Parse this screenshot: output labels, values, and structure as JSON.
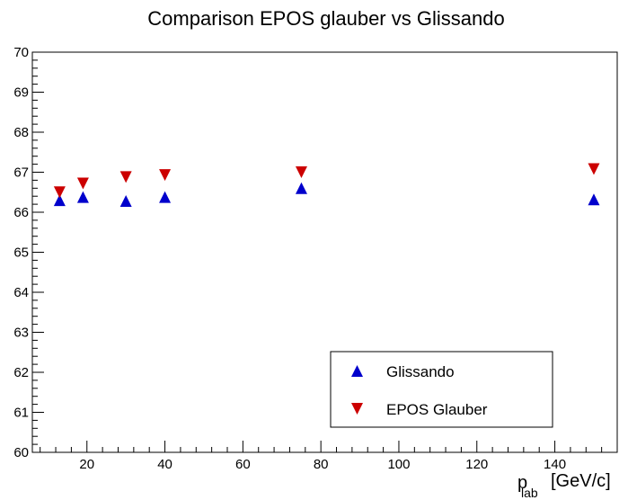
{
  "chart_data": {
    "type": "scatter",
    "title": "Comparison EPOS glauber vs Glissando",
    "xlabel": {
      "main": "p",
      "sub": "lab",
      "unit": "[GeV/c]"
    },
    "ylabel": "",
    "xlim": [
      6,
      156
    ],
    "ylim": [
      60,
      70
    ],
    "x_ticks": [
      20,
      40,
      60,
      80,
      100,
      120,
      140
    ],
    "y_ticks": [
      60,
      61,
      62,
      63,
      64,
      65,
      66,
      67,
      68,
      69,
      70
    ],
    "grid": false,
    "legend_position": "bottom-right",
    "series": [
      {
        "name": "Glissando",
        "marker": "triangle-up",
        "color": "#0000cc",
        "points": [
          {
            "x": 13,
            "y": 66.3
          },
          {
            "x": 19,
            "y": 66.38
          },
          {
            "x": 30,
            "y": 66.28
          },
          {
            "x": 40,
            "y": 66.38
          },
          {
            "x": 75,
            "y": 66.6
          },
          {
            "x": 150,
            "y": 66.32
          }
        ]
      },
      {
        "name": "EPOS Glauber",
        "marker": "triangle-down",
        "color": "#cc0000",
        "points": [
          {
            "x": 13,
            "y": 66.5
          },
          {
            "x": 19,
            "y": 66.72
          },
          {
            "x": 30,
            "y": 66.88
          },
          {
            "x": 40,
            "y": 66.93
          },
          {
            "x": 75,
            "y": 67.0
          },
          {
            "x": 150,
            "y": 67.08
          }
        ]
      }
    ]
  }
}
